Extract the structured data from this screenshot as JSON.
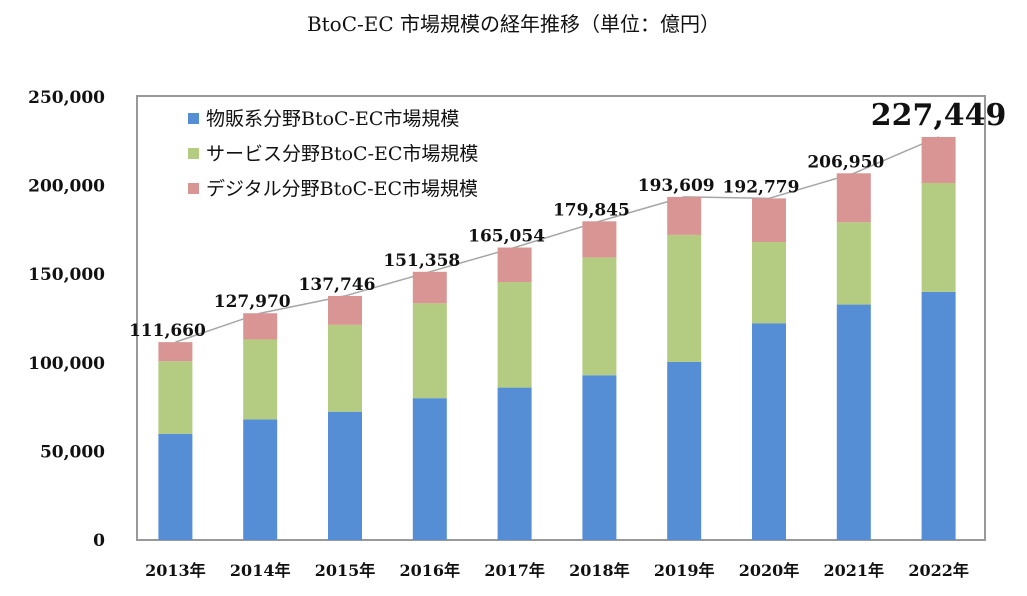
{
  "chart_data": {
    "type": "bar",
    "stacked": true,
    "title": "BtoC-EC 市場規模の経年推移（単位：億円）",
    "xlabel": "",
    "ylabel": "",
    "ylim": [
      0,
      250000
    ],
    "yticks": [
      0,
      50000,
      100000,
      150000,
      200000,
      250000
    ],
    "ytick_labels": [
      "0",
      "50,000",
      "100,000",
      "150,000",
      "200,000",
      "250,000"
    ],
    "categories": [
      "2013年",
      "2014年",
      "2015年",
      "2016年",
      "2017年",
      "2018年",
      "2019年",
      "2020年",
      "2021年",
      "2022年"
    ],
    "series": [
      {
        "name": "物販系分野BtoC-EC市場規模",
        "color": "#558ed5",
        "values": [
          59931,
          68043,
          72398,
          80043,
          86008,
          92992,
          100515,
          122333,
          132865,
          139997
        ]
      },
      {
        "name": "サービス分野BtoC-EC市場規模",
        "color": "#b3cc82",
        "values": [
          40983,
          45133,
          49014,
          53532,
          59568,
          66471,
          71672,
          45832,
          46424,
          61477
        ]
      },
      {
        "name": "デジタル分野BtoC-EC市場規模",
        "color": "#d99594",
        "values": [
          10746,
          14794,
          16334,
          17783,
          19478,
          20382,
          21422,
          24614,
          27661,
          25974
        ]
      }
    ],
    "totals": [
      111660,
      127970,
      137746,
      151358,
      165054,
      179845,
      193609,
      192779,
      206950,
      227449
    ],
    "total_labels": [
      "111,660",
      "127,970",
      "137,746",
      "151,358",
      "165,054",
      "179,845",
      "193,609",
      "192,779",
      "206,950",
      "227,449"
    ],
    "total_line_color": "#a6a6a6",
    "legend_position": "top-left",
    "grid": false
  }
}
